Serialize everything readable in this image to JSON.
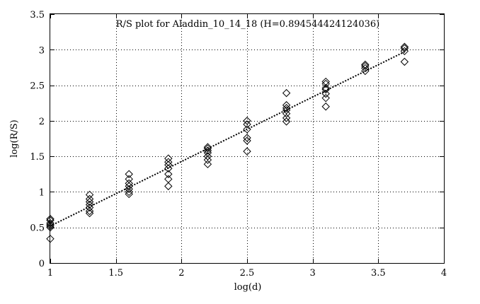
{
  "chart_data": {
    "type": "scatter",
    "title": "R/S plot for Aladdin_10_14_18 (H=0.894544424124036)",
    "xlabel": "log(d)",
    "ylabel": "log(R/S)",
    "xlim": [
      1,
      4
    ],
    "ylim": [
      0,
      3.5
    ],
    "xticks": [
      "1",
      "1.5",
      "2",
      "2.5",
      "3",
      "3.5",
      "4"
    ],
    "yticks": [
      "0",
      "0.5",
      "1",
      "1.5",
      "2",
      "2.5",
      "3",
      "3.5"
    ],
    "grid": true,
    "grid_style": "dotted",
    "marker": "diamond",
    "series": [
      {
        "points": [
          [
            1.0,
            0.34
          ],
          [
            1.0,
            0.5
          ],
          [
            1.0,
            0.52
          ],
          [
            1.0,
            0.54
          ],
          [
            1.0,
            0.56
          ],
          [
            1.0,
            0.6
          ],
          [
            1.0,
            0.62
          ],
          [
            1.3,
            0.7
          ],
          [
            1.3,
            0.73
          ],
          [
            1.3,
            0.78
          ],
          [
            1.3,
            0.82
          ],
          [
            1.3,
            0.86
          ],
          [
            1.3,
            0.9
          ],
          [
            1.3,
            0.96
          ],
          [
            1.6,
            0.97
          ],
          [
            1.6,
            1.0
          ],
          [
            1.6,
            1.04
          ],
          [
            1.6,
            1.08
          ],
          [
            1.6,
            1.12
          ],
          [
            1.6,
            1.18
          ],
          [
            1.6,
            1.25
          ],
          [
            1.9,
            1.08
          ],
          [
            1.9,
            1.18
          ],
          [
            1.9,
            1.25
          ],
          [
            1.9,
            1.33
          ],
          [
            1.9,
            1.38
          ],
          [
            1.9,
            1.42
          ],
          [
            1.9,
            1.47
          ],
          [
            2.2,
            1.39
          ],
          [
            2.2,
            1.45
          ],
          [
            2.2,
            1.5
          ],
          [
            2.2,
            1.55
          ],
          [
            2.2,
            1.58
          ],
          [
            2.2,
            1.61
          ],
          [
            2.2,
            1.63
          ],
          [
            2.5,
            1.57
          ],
          [
            2.5,
            1.72
          ],
          [
            2.5,
            1.76
          ],
          [
            2.5,
            1.88
          ],
          [
            2.5,
            1.95
          ],
          [
            2.5,
            2.0
          ],
          [
            2.8,
            1.99
          ],
          [
            2.8,
            2.04
          ],
          [
            2.8,
            2.1
          ],
          [
            2.8,
            2.15
          ],
          [
            2.8,
            2.18
          ],
          [
            2.8,
            2.22
          ],
          [
            2.8,
            2.39
          ],
          [
            3.1,
            2.2
          ],
          [
            3.1,
            2.32
          ],
          [
            3.1,
            2.38
          ],
          [
            3.1,
            2.44
          ],
          [
            3.1,
            2.46
          ],
          [
            3.1,
            2.52
          ],
          [
            3.1,
            2.55
          ],
          [
            3.4,
            2.7
          ],
          [
            3.4,
            2.74
          ],
          [
            3.4,
            2.77
          ],
          [
            3.4,
            2.79
          ],
          [
            3.7,
            2.83
          ],
          [
            3.7,
            2.98
          ],
          [
            3.7,
            3.02
          ],
          [
            3.7,
            3.04
          ]
        ]
      }
    ],
    "fit_line": {
      "x": [
        1.0,
        3.7
      ],
      "y": [
        0.52,
        2.97
      ],
      "style": "dotted"
    }
  }
}
